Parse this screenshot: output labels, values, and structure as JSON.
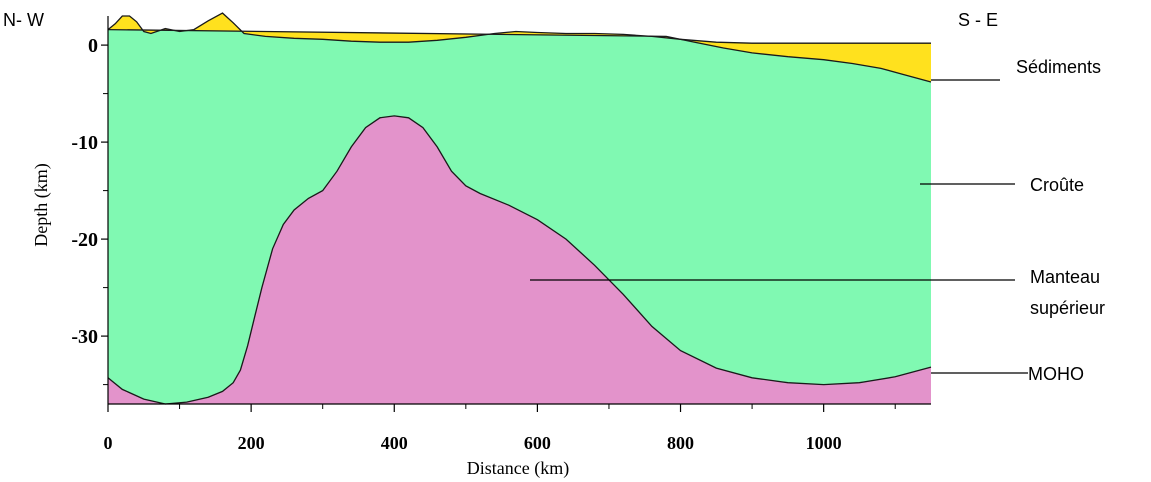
{
  "orientation": {
    "left": "N- W",
    "right": "S - E"
  },
  "chart_data": {
    "type": "area",
    "xlabel": "Distance (km)",
    "ylabel": "Depth (km)",
    "xlim": [
      0,
      1150
    ],
    "ylim": [
      -37,
      3
    ],
    "x_ticks": [
      0,
      200,
      400,
      600,
      800,
      1000
    ],
    "x_tick_labels": [
      "0",
      "200",
      "400",
      "600",
      "800",
      "1000"
    ],
    "x_minor_ticks": [
      100,
      300,
      500,
      700,
      900,
      1100
    ],
    "y_ticks": [
      0,
      -10,
      -20,
      -30
    ],
    "y_tick_labels": [
      "0",
      "-10",
      "-20",
      "-30"
    ],
    "y_minor_ticks": [
      -5,
      -15,
      -25,
      -35
    ],
    "surface": [
      [
        0,
        1.6
      ],
      [
        10,
        2.2
      ],
      [
        20,
        3.0
      ],
      [
        30,
        3.0
      ],
      [
        40,
        2.4
      ],
      [
        50,
        1.4
      ],
      [
        60,
        1.2
      ],
      [
        80,
        1.7
      ],
      [
        100,
        1.4
      ],
      [
        120,
        1.6
      ],
      [
        140,
        2.5
      ],
      [
        160,
        3.3
      ],
      [
        175,
        2.3
      ],
      [
        190,
        1.2
      ],
      [
        220,
        0.9
      ],
      [
        260,
        0.7
      ],
      [
        300,
        0.6
      ],
      [
        340,
        0.4
      ],
      [
        380,
        0.3
      ],
      [
        420,
        0.3
      ],
      [
        460,
        0.5
      ],
      [
        500,
        0.8
      ],
      [
        540,
        1.2
      ],
      [
        570,
        1.4
      ],
      [
        600,
        1.3
      ],
      [
        640,
        1.2
      ],
      [
        680,
        1.2
      ],
      [
        720,
        1.1
      ],
      [
        760,
        0.9
      ],
      [
        800,
        0.6
      ],
      [
        850,
        0.3
      ],
      [
        900,
        0.2
      ],
      [
        950,
        0.2
      ],
      [
        1000,
        0.2
      ],
      [
        1050,
        0.2
      ],
      [
        1100,
        0.2
      ],
      [
        1150,
        0.2
      ]
    ],
    "sediment_base": [
      [
        0,
        1.6
      ],
      [
        780,
        0.9
      ],
      [
        820,
        0.3
      ],
      [
        860,
        -0.3
      ],
      [
        900,
        -0.8
      ],
      [
        950,
        -1.2
      ],
      [
        1000,
        -1.5
      ],
      [
        1040,
        -1.9
      ],
      [
        1080,
        -2.4
      ],
      [
        1110,
        -3.0
      ],
      [
        1150,
        -3.8
      ]
    ],
    "moho": [
      [
        0,
        -34.3
      ],
      [
        20,
        -35.5
      ],
      [
        50,
        -36.5
      ],
      [
        80,
        -37.0
      ],
      [
        110,
        -36.8
      ],
      [
        140,
        -36.3
      ],
      [
        160,
        -35.7
      ],
      [
        175,
        -34.8
      ],
      [
        185,
        -33.5
      ],
      [
        195,
        -31.0
      ],
      [
        205,
        -28.0
      ],
      [
        215,
        -25.0
      ],
      [
        230,
        -21.0
      ],
      [
        245,
        -18.5
      ],
      [
        260,
        -17.0
      ],
      [
        280,
        -15.8
      ],
      [
        300,
        -15.0
      ],
      [
        320,
        -13.0
      ],
      [
        340,
        -10.5
      ],
      [
        360,
        -8.5
      ],
      [
        380,
        -7.5
      ],
      [
        400,
        -7.3
      ],
      [
        420,
        -7.5
      ],
      [
        440,
        -8.5
      ],
      [
        460,
        -10.5
      ],
      [
        480,
        -13.0
      ],
      [
        500,
        -14.5
      ],
      [
        520,
        -15.3
      ],
      [
        560,
        -16.5
      ],
      [
        600,
        -18.0
      ],
      [
        640,
        -20.0
      ],
      [
        680,
        -22.7
      ],
      [
        720,
        -25.7
      ],
      [
        760,
        -29.0
      ],
      [
        800,
        -31.5
      ],
      [
        850,
        -33.3
      ],
      [
        900,
        -34.3
      ],
      [
        950,
        -34.8
      ],
      [
        1000,
        -35.0
      ],
      [
        1050,
        -34.8
      ],
      [
        1100,
        -34.2
      ],
      [
        1150,
        -33.2
      ]
    ],
    "colors": {
      "sediments": "#ffe11e",
      "crust": "#80f9b2",
      "mantle": "#e393cb",
      "outline": "#1a1a1a"
    }
  },
  "annotations": {
    "sediments": "Sédiments",
    "crust": "Croûte",
    "mantle_line1": "Manteau",
    "mantle_line2": "supérieur",
    "moho": "MOHO"
  }
}
